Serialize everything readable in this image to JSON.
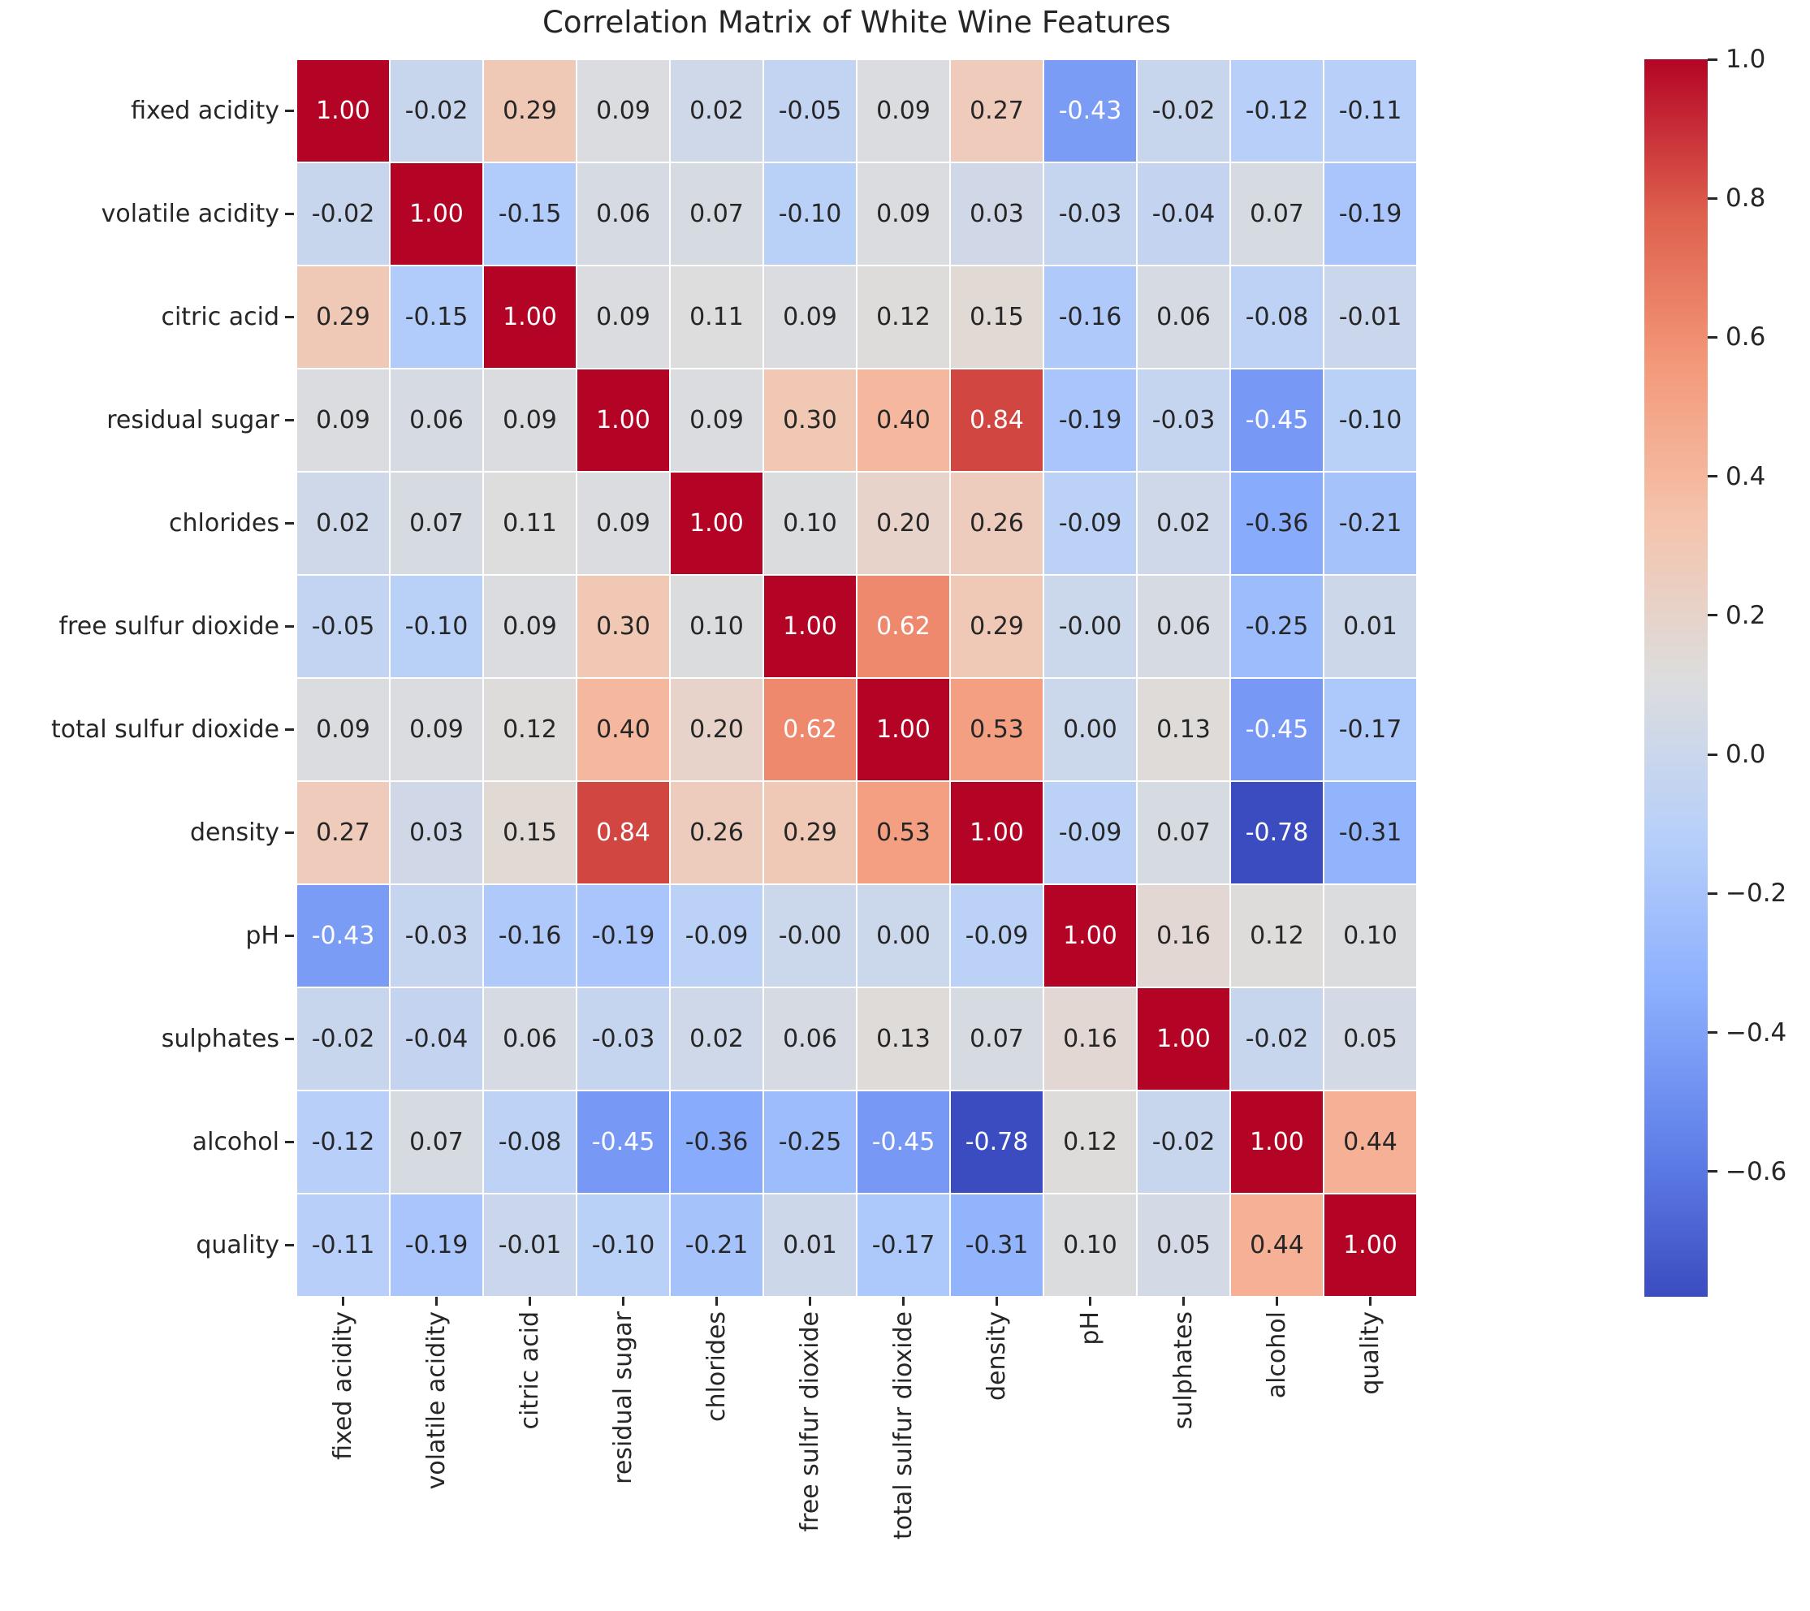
{
  "figure": {
    "background": "#ffffff",
    "text_color": "#262626",
    "annotation_light_color": "#ffffff"
  },
  "chart_data": {
    "type": "heatmap",
    "title": "Correlation Matrix of White Wine Features",
    "features": [
      "fixed acidity",
      "volatile acidity",
      "citric acid",
      "residual sugar",
      "chlorides",
      "free sulfur dioxide",
      "total sulfur dioxide",
      "density",
      "pH",
      "sulphates",
      "alcohol",
      "quality"
    ],
    "matrix": [
      [
        "1.00",
        "-0.02",
        "0.29",
        "0.09",
        "0.02",
        "-0.05",
        "0.09",
        "0.27",
        "-0.43",
        "-0.02",
        "-0.12",
        "-0.11"
      ],
      [
        "-0.02",
        "1.00",
        "-0.15",
        "0.06",
        "0.07",
        "-0.10",
        "0.09",
        "0.03",
        "-0.03",
        "-0.04",
        "0.07",
        "-0.19"
      ],
      [
        "0.29",
        "-0.15",
        "1.00",
        "0.09",
        "0.11",
        "0.09",
        "0.12",
        "0.15",
        "-0.16",
        "0.06",
        "-0.08",
        "-0.01"
      ],
      [
        "0.09",
        "0.06",
        "0.09",
        "1.00",
        "0.09",
        "0.30",
        "0.40",
        "0.84",
        "-0.19",
        "-0.03",
        "-0.45",
        "-0.10"
      ],
      [
        "0.02",
        "0.07",
        "0.11",
        "0.09",
        "1.00",
        "0.10",
        "0.20",
        "0.26",
        "-0.09",
        "0.02",
        "-0.36",
        "-0.21"
      ],
      [
        "-0.05",
        "-0.10",
        "0.09",
        "0.30",
        "0.10",
        "1.00",
        "0.62",
        "0.29",
        "-0.00",
        "0.06",
        "-0.25",
        "0.01"
      ],
      [
        "0.09",
        "0.09",
        "0.12",
        "0.40",
        "0.20",
        "0.62",
        "1.00",
        "0.53",
        "0.00",
        "0.13",
        "-0.45",
        "-0.17"
      ],
      [
        "0.27",
        "0.03",
        "0.15",
        "0.84",
        "0.26",
        "0.29",
        "0.53",
        "1.00",
        "-0.09",
        "0.07",
        "-0.78",
        "-0.31"
      ],
      [
        "-0.43",
        "-0.03",
        "-0.16",
        "-0.19",
        "-0.09",
        "-0.00",
        "0.00",
        "-0.09",
        "1.00",
        "0.16",
        "0.12",
        "0.10"
      ],
      [
        "-0.02",
        "-0.04",
        "0.06",
        "-0.03",
        "0.02",
        "0.06",
        "0.13",
        "0.07",
        "0.16",
        "1.00",
        "-0.02",
        "0.05"
      ],
      [
        "-0.12",
        "0.07",
        "-0.08",
        "-0.45",
        "-0.36",
        "-0.25",
        "-0.45",
        "-0.78",
        "0.12",
        "-0.02",
        "1.00",
        "0.44"
      ],
      [
        "-0.11",
        "-0.19",
        "-0.01",
        "-0.10",
        "-0.21",
        "0.01",
        "-0.17",
        "-0.31",
        "0.10",
        "0.05",
        "0.44",
        "1.00"
      ]
    ],
    "colormap": {
      "name": "coolwarm",
      "vmin": -0.78,
      "vmax": 1.0,
      "anchors_low_to_high": [
        [
          59,
          76,
          192
        ],
        [
          98,
          130,
          234
        ],
        [
          141,
          176,
          254
        ],
        [
          184,
          208,
          249
        ],
        [
          221,
          221,
          221
        ],
        [
          245,
          196,
          173
        ],
        [
          244,
          154,
          123
        ],
        [
          222,
          96,
          77
        ],
        [
          180,
          4,
          38
        ]
      ]
    },
    "colorbar": {
      "position": "right",
      "tick_values": [
        1.0,
        0.8,
        0.6,
        0.4,
        0.2,
        0.0,
        -0.2,
        -0.4,
        -0.6
      ],
      "tick_labels": [
        "1.0",
        "0.8",
        "0.6",
        "0.4",
        "0.2",
        "0.0",
        "−0.2",
        "−0.4",
        "−0.6"
      ]
    },
    "grid": false
  }
}
